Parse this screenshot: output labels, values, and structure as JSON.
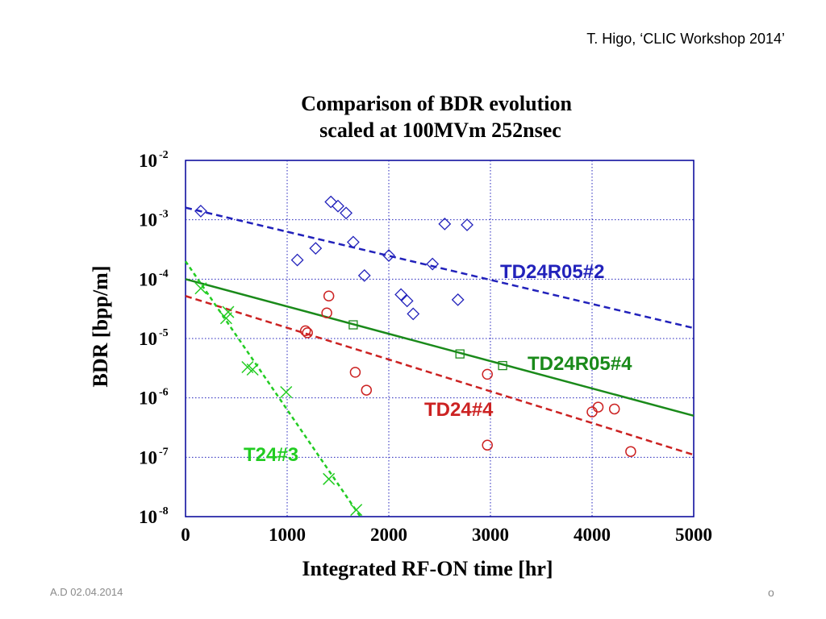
{
  "slide": {
    "credit": "T. Higo, ‘CLIC Workshop 2014’",
    "footer_left": "A.D 02.04.2014",
    "footer_right": "o"
  },
  "chart_data": {
    "type": "scatter",
    "title": [
      "Comparison of BDR evolution",
      "scaled at 100MVm 252nsec"
    ],
    "xlabel": "Integrated RF-ON time [hr]",
    "ylabel": "BDR [bpp/m]",
    "xlim": [
      0,
      5000
    ],
    "ylim": [
      1e-08,
      0.01
    ],
    "yscale": "log",
    "grid": true,
    "x_ticks": [
      0,
      1000,
      2000,
      3000,
      4000,
      5000
    ],
    "y_ticks": [
      {
        "value": 0.01,
        "exp": "-2"
      },
      {
        "value": 0.001,
        "exp": "-3"
      },
      {
        "value": 0.0001,
        "exp": "-4"
      },
      {
        "value": 1e-05,
        "exp": "-5"
      },
      {
        "value": 1e-06,
        "exp": "-6"
      },
      {
        "value": 1e-07,
        "exp": "-7"
      },
      {
        "value": 1e-08,
        "exp": "-8"
      }
    ],
    "y_tick_base": "10",
    "series": [
      {
        "name": "TD24R05#2",
        "color": "#2222bb",
        "marker": "diamond",
        "line_style": "dashed",
        "fit": [
          [
            0,
            0.0016
          ],
          [
            5000,
            1.5e-05
          ]
        ],
        "points": [
          [
            150,
            0.0014
          ],
          [
            1100,
            0.00021
          ],
          [
            1280,
            0.00033
          ],
          [
            1430,
            0.002
          ],
          [
            1500,
            0.0017
          ],
          [
            1580,
            0.0013
          ],
          [
            1650,
            0.00042
          ],
          [
            1760,
            0.000115
          ],
          [
            2000,
            0.00025
          ],
          [
            2120,
            5.5e-05
          ],
          [
            2180,
            4.3e-05
          ],
          [
            2240,
            2.6e-05
          ],
          [
            2430,
            0.00018
          ],
          [
            2550,
            0.00085
          ],
          [
            2680,
            4.5e-05
          ],
          [
            2770,
            0.00082
          ]
        ]
      },
      {
        "name": "TD24R05#4",
        "color": "#1a8a1a",
        "marker": "square",
        "line_style": "solid",
        "fit": [
          [
            0,
            0.0001
          ],
          [
            5000,
            5e-07
          ]
        ],
        "points": [
          [
            1650,
            1.7e-05
          ],
          [
            2700,
            5.5e-06
          ],
          [
            3120,
            3.5e-06
          ]
        ]
      },
      {
        "name": "TD24#4",
        "color": "#cc2222",
        "marker": "circle",
        "line_style": "dashed",
        "fit": [
          [
            0,
            5.2e-05
          ],
          [
            5000,
            1.1e-07
          ]
        ],
        "points": [
          [
            1180,
            1.35e-05
          ],
          [
            1200,
            1.25e-05
          ],
          [
            1390,
            2.7e-05
          ],
          [
            1410,
            5.2e-05
          ],
          [
            1670,
            2.7e-06
          ],
          [
            1780,
            1.35e-06
          ],
          [
            2970,
            2.5e-06
          ],
          [
            2970,
            1.6e-07
          ],
          [
            4000,
            5.8e-07
          ],
          [
            4060,
            7e-07
          ],
          [
            4220,
            6.5e-07
          ],
          [
            4380,
            1.25e-07
          ]
        ]
      },
      {
        "name": "T24#3",
        "color": "#22cc22",
        "marker": "x",
        "line_style": "dashed",
        "fit": [
          [
            0,
            0.0002
          ],
          [
            1720,
            1e-08
          ]
        ],
        "points": [
          [
            150,
            7e-05
          ],
          [
            400,
            2.2e-05
          ],
          [
            420,
            2.8e-05
          ],
          [
            610,
            3.3e-06
          ],
          [
            660,
            3e-06
          ],
          [
            990,
            1.25e-06
          ],
          [
            1410,
            4.3e-08
          ],
          [
            1680,
            1.3e-08
          ]
        ]
      }
    ]
  }
}
